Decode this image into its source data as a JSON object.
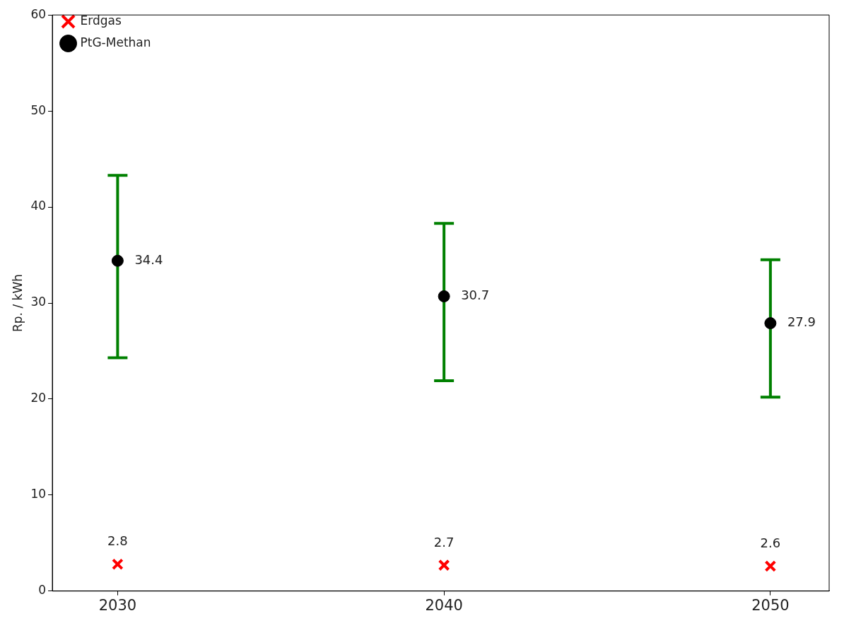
{
  "chart_data": {
    "type": "scatter",
    "ylabel": "Rp. / kWh",
    "x": [
      2030,
      2040,
      2050
    ],
    "xlim": [
      2028,
      2051.8
    ],
    "xticks": [
      2030,
      2040,
      2050
    ],
    "ylim": [
      0,
      60
    ],
    "yticks": [
      0,
      10,
      20,
      30,
      40,
      50,
      60
    ],
    "grid": false,
    "legend": "top left",
    "data_labels": true,
    "series": [
      {
        "name": "Erdgas",
        "color": "#ff0000",
        "marker": "cross",
        "values": [
          2.8,
          2.7,
          2.6
        ]
      },
      {
        "name": "PtG-Methan",
        "color": "#000000",
        "marker": "circle",
        "values": [
          34.4,
          30.7,
          27.9
        ],
        "errors": [
          [
            24.3,
            43.3
          ],
          [
            21.9,
            38.3
          ],
          [
            20.2,
            34.5
          ]
        ]
      }
    ]
  }
}
